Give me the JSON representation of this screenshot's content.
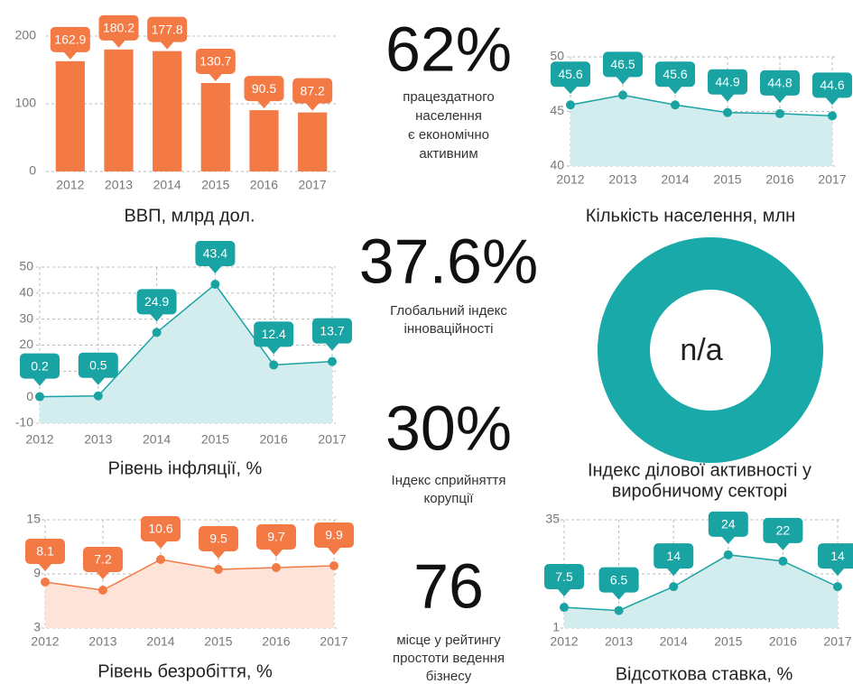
{
  "chart_data": [
    {
      "type": "bar",
      "title": "ВВП, млрд дол.",
      "categories": [
        "2012",
        "2013",
        "2014",
        "2015",
        "2016",
        "2017"
      ],
      "values": [
        162.9,
        180.2,
        177.8,
        130.7,
        90.5,
        87.2
      ],
      "color": "#f47a45",
      "ylim": [
        0,
        200
      ],
      "yticks": [
        0,
        100,
        200
      ],
      "grid": true
    },
    {
      "type": "line",
      "title": "Кількість населення, млн",
      "categories": [
        "2012",
        "2013",
        "2014",
        "2015",
        "2016",
        "2017"
      ],
      "values": [
        45.6,
        46.5,
        45.6,
        44.9,
        44.8,
        44.6
      ],
      "color": "#1aa3a3",
      "area_color": "#d3ecee",
      "ylim": [
        40,
        50
      ],
      "yticks": [
        40,
        45,
        50
      ],
      "grid": true
    },
    {
      "type": "line",
      "title": "Рівень інфляції, %",
      "categories": [
        "2012",
        "2013",
        "2014",
        "2015",
        "2016",
        "2017"
      ],
      "values": [
        0.2,
        0.5,
        24.9,
        43.4,
        12.4,
        13.7
      ],
      "color": "#1aa3a3",
      "area_color": "#d3ecee",
      "ylim": [
        -10,
        50
      ],
      "yticks": [
        -10,
        0,
        10,
        20,
        30,
        40,
        50
      ],
      "grid": true
    },
    {
      "type": "line",
      "title": "Рівень безробіття, %",
      "categories": [
        "2012",
        "2013",
        "2014",
        "2015",
        "2016",
        "2017"
      ],
      "values": [
        8.1,
        7.2,
        10.6,
        9.5,
        9.7,
        9.9
      ],
      "color": "#f47a45",
      "area_color": "#fde3d8",
      "ylim": [
        3,
        15
      ],
      "yticks": [
        3,
        9,
        15
      ],
      "grid": true
    },
    {
      "type": "line",
      "title": "Відсоткова ставка, %",
      "categories": [
        "2012",
        "2013",
        "2014",
        "2015",
        "2016",
        "2017"
      ],
      "values": [
        7.5,
        6.5,
        14,
        24,
        22,
        14
      ],
      "color": "#1aa3a3",
      "area_color": "#d3ecee",
      "ylim": [
        1,
        35
      ],
      "yticks": [
        1,
        18,
        35
      ],
      "grid": true
    }
  ],
  "stats": [
    {
      "value": "62%",
      "caption": [
        "працездатного",
        "населення",
        "є економічно",
        "активним"
      ]
    },
    {
      "value": "37.6%",
      "caption": [
        "Глобальний індекс",
        "інноваційності"
      ]
    },
    {
      "value": "30%",
      "caption": [
        "Індекс сприйняття",
        "корупції"
      ]
    },
    {
      "value": "76",
      "caption": [
        "місце у рейтингу",
        "простоти ведення",
        "бізнесу"
      ]
    }
  ],
  "donut": {
    "label": "n/a",
    "caption": [
      "Індекс ділової активності у",
      "виробничому секторі"
    ],
    "color": "#1aa9a9"
  }
}
